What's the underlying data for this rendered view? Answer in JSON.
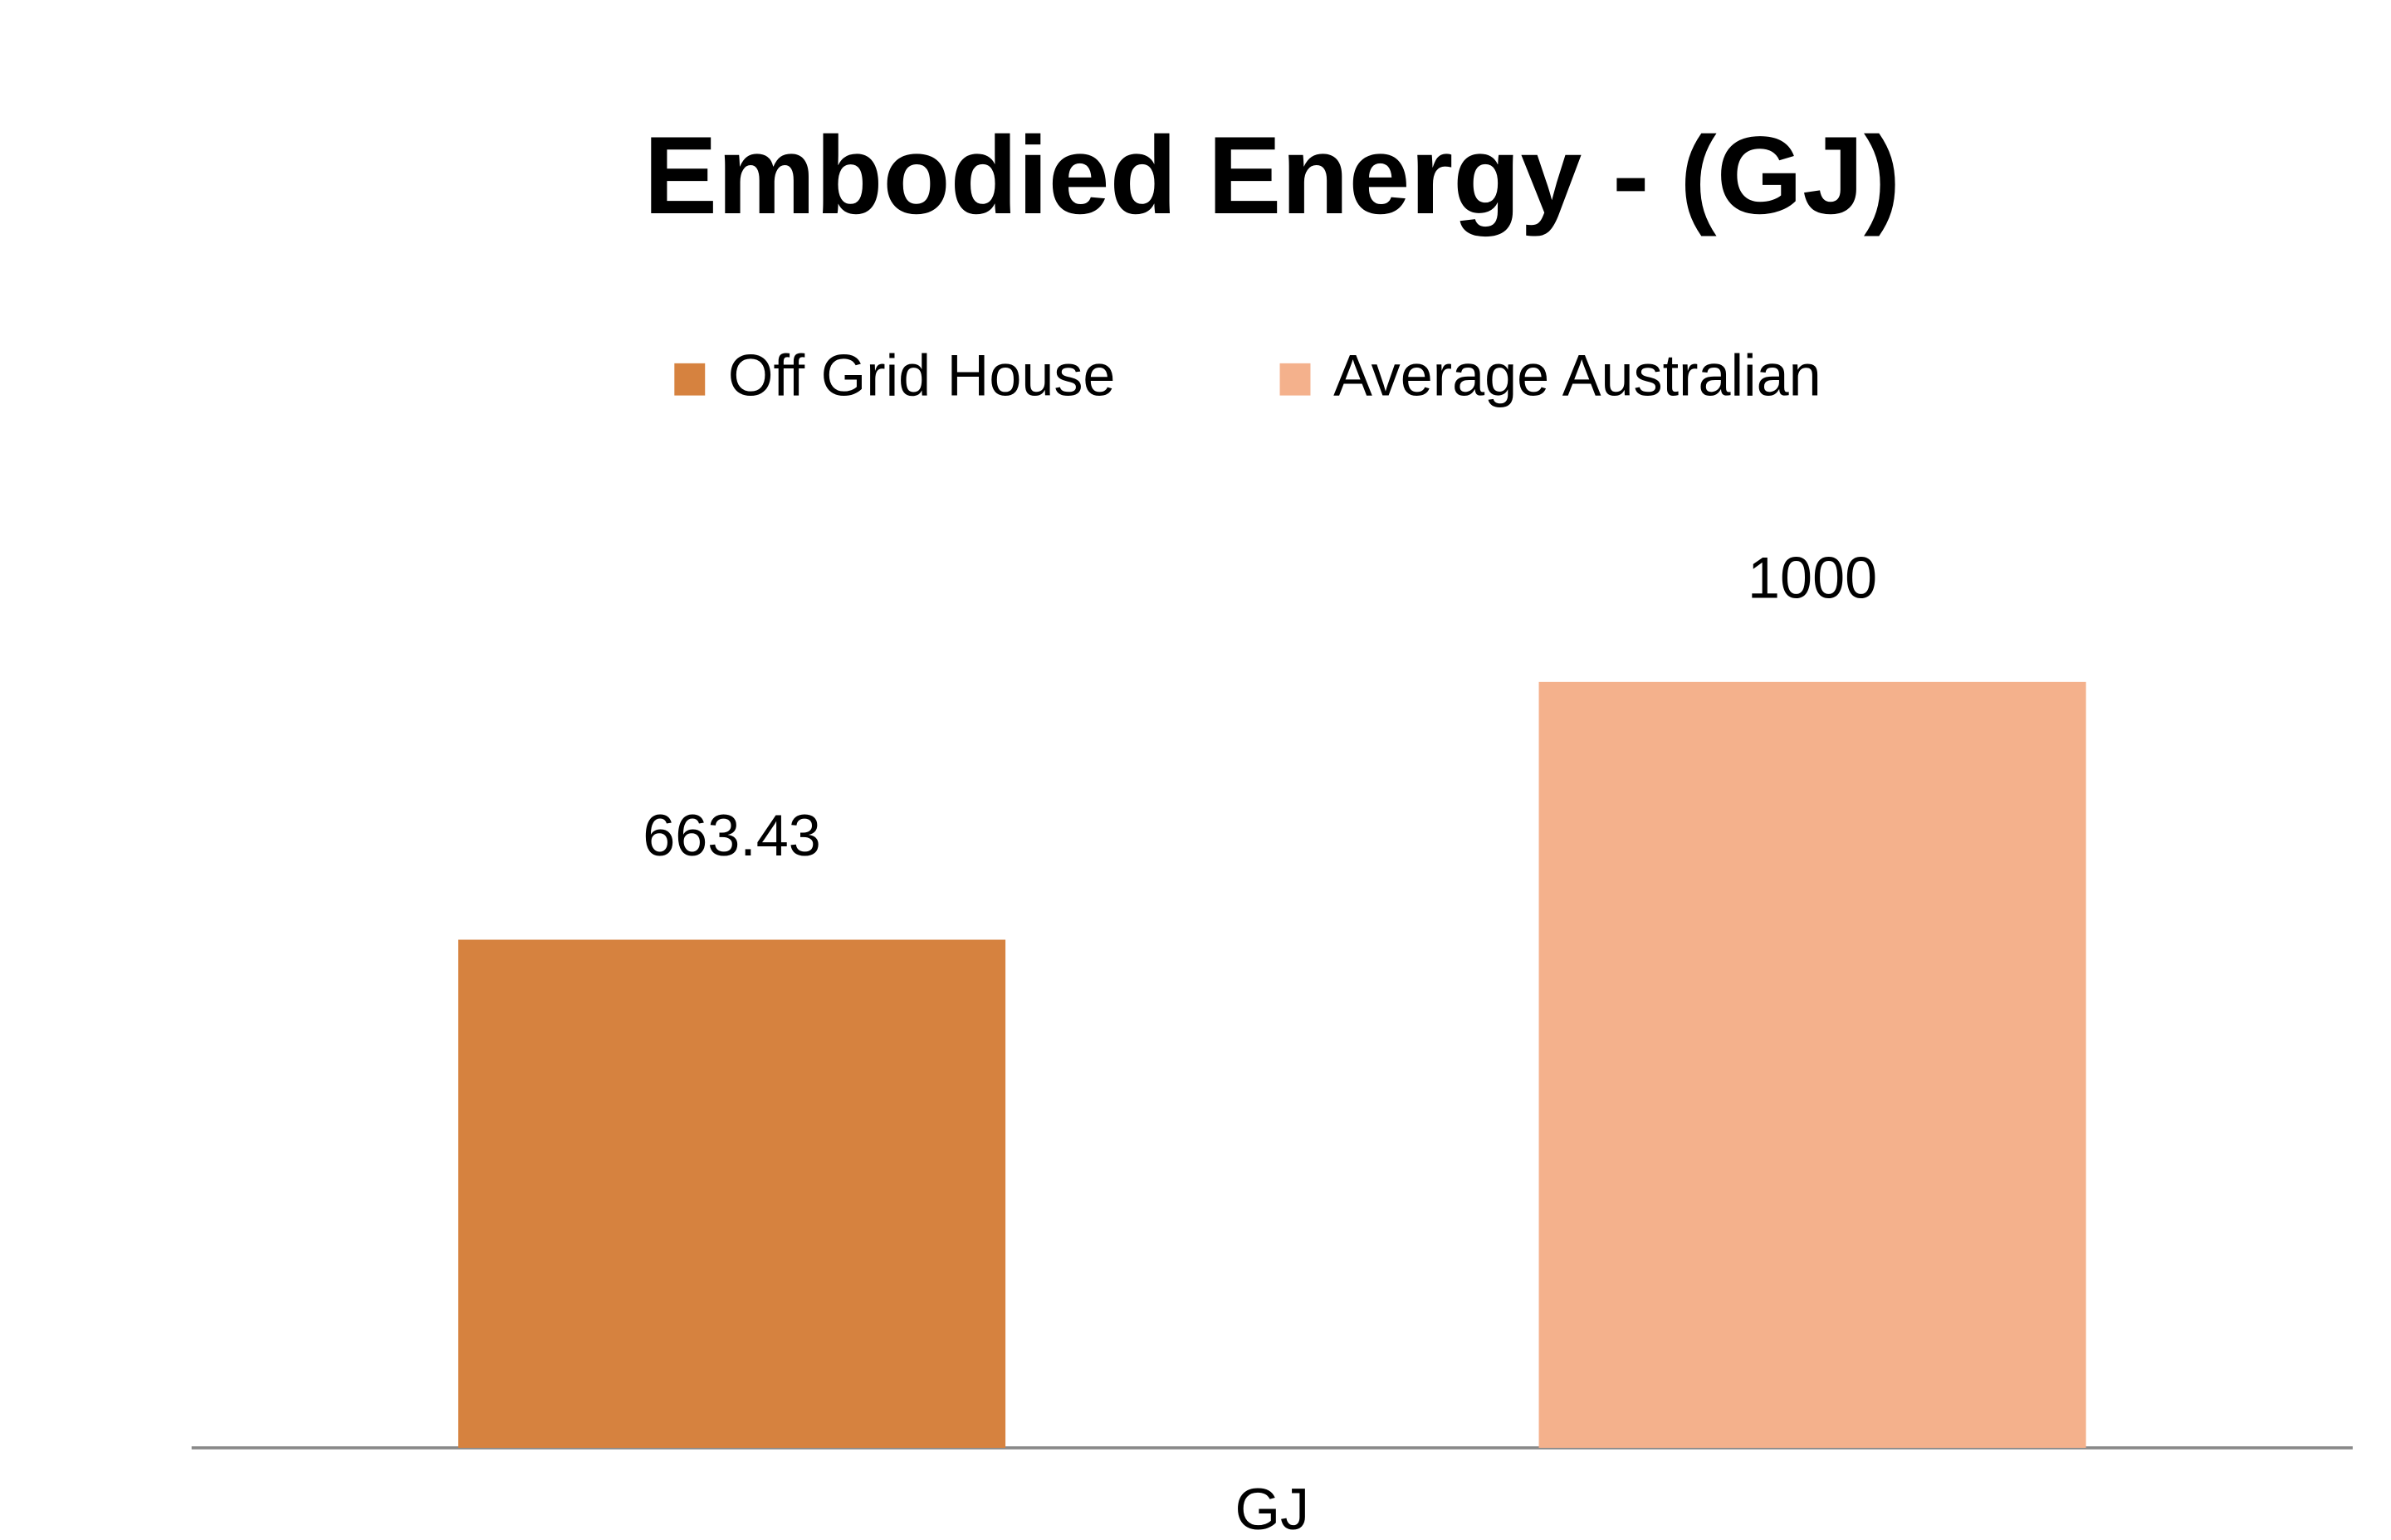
{
  "chart_data": {
    "type": "bar",
    "title": "Embodied Energy - (GJ)",
    "categories": [
      "GJ"
    ],
    "series": [
      {
        "name": "Off Grid House",
        "color": "#d6823f",
        "values": [
          663.43
        ]
      },
      {
        "name": "Average Australian",
        "color": "#f4b18c",
        "values": [
          1000
        ]
      }
    ],
    "ylim": [
      0,
      1000
    ],
    "grid": false,
    "legend": "top"
  }
}
